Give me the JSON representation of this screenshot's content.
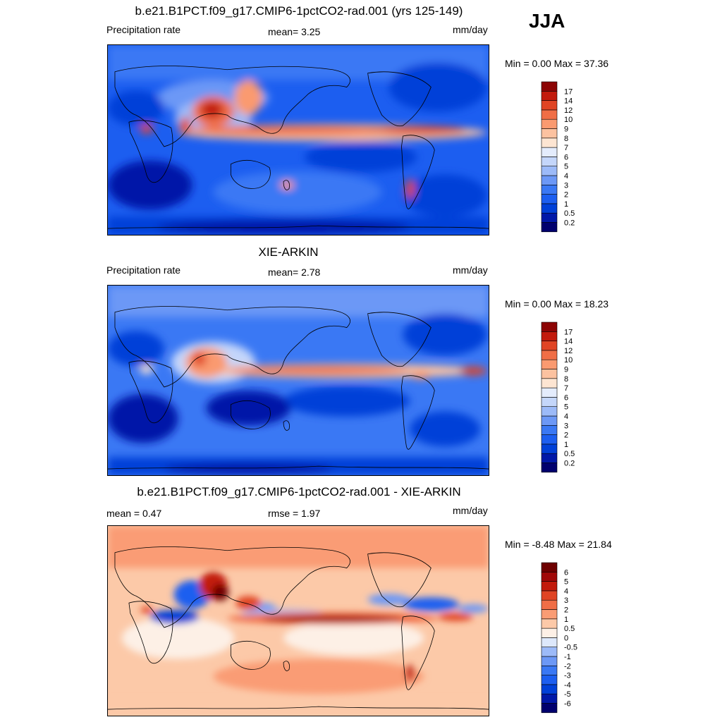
{
  "season": "JJA",
  "panels": [
    {
      "title": "b.e21.B1PCT.f09_g17.CMIP6-1pctCO2-rad.001 (yrs 125-149)",
      "left_label": "Precipitation rate",
      "mid_label": "mean=   3.25",
      "units": "mm/day",
      "minmax": "Min =    0.00 Max =  37.36"
    },
    {
      "title": "XIE-ARKIN",
      "left_label": "Precipitation rate",
      "mid_label": "mean=   2.78",
      "units": "mm/day",
      "minmax": "Min =    0.00 Max =  18.23"
    },
    {
      "title": "b.e21.B1PCT.f09_g17.CMIP6-1pctCO2-rad.001 - XIE-ARKIN",
      "left_label": "mean =   0.47",
      "mid_label": "rmse =   1.97",
      "units": "mm/day",
      "minmax": "Min = -8.48 Max =  21.84"
    }
  ],
  "chart_data": [
    {
      "type": "heatmap",
      "title": "b.e21.B1PCT.f09_g17.CMIP6-1pctCO2-rad.001 (yrs 125-149)",
      "variable": "Precipitation rate",
      "units": "mm/day",
      "mean": 3.25,
      "min": 0.0,
      "max": 37.36,
      "levels": [
        "0.2",
        "0.5",
        "1",
        "2",
        "3",
        "4",
        "5",
        "6",
        "7",
        "8",
        "9",
        "10",
        "12",
        "14",
        "17"
      ],
      "colors": [
        "#00006e",
        "#0018a8",
        "#0040d8",
        "#1c5ef0",
        "#3a78f4",
        "#6c98f6",
        "#9cbaf8",
        "#c4d6fa",
        "#e4ecfc",
        "#fde5d2",
        "#fcc2a0",
        "#fa9a70",
        "#f06e46",
        "#e04424",
        "#c21a0c",
        "#8c0404"
      ]
    },
    {
      "type": "heatmap",
      "title": "XIE-ARKIN",
      "variable": "Precipitation rate",
      "units": "mm/day",
      "mean": 2.78,
      "min": 0.0,
      "max": 18.23,
      "levels": [
        "0.2",
        "0.5",
        "1",
        "2",
        "3",
        "4",
        "5",
        "6",
        "7",
        "8",
        "9",
        "10",
        "12",
        "14",
        "17"
      ],
      "colors": [
        "#00006e",
        "#0018a8",
        "#0040d8",
        "#1c5ef0",
        "#3a78f4",
        "#6c98f6",
        "#9cbaf8",
        "#c4d6fa",
        "#e4ecfc",
        "#fde5d2",
        "#fcc2a0",
        "#fa9a70",
        "#f06e46",
        "#e04424",
        "#c21a0c",
        "#8c0404"
      ]
    },
    {
      "type": "heatmap",
      "title": "b.e21.B1PCT.f09_g17.CMIP6-1pctCO2-rad.001 - XIE-ARKIN",
      "units": "mm/day",
      "mean": 0.47,
      "rmse": 1.97,
      "min": -8.48,
      "max": 21.84,
      "levels": [
        "-6",
        "-5",
        "-4",
        "-3",
        "-2",
        "-1",
        "-0.5",
        "0",
        "0.5",
        "1",
        "2",
        "3",
        "4",
        "5",
        "6"
      ],
      "colors": [
        "#00006e",
        "#0018a8",
        "#0040d8",
        "#1c5ef0",
        "#3a78f4",
        "#6c98f6",
        "#9cbaf8",
        "#dde8fb",
        "#fdf0e6",
        "#fcc9a8",
        "#fa9c74",
        "#f06e46",
        "#e04424",
        "#c21a0c",
        "#a00808",
        "#6e0000"
      ]
    }
  ]
}
